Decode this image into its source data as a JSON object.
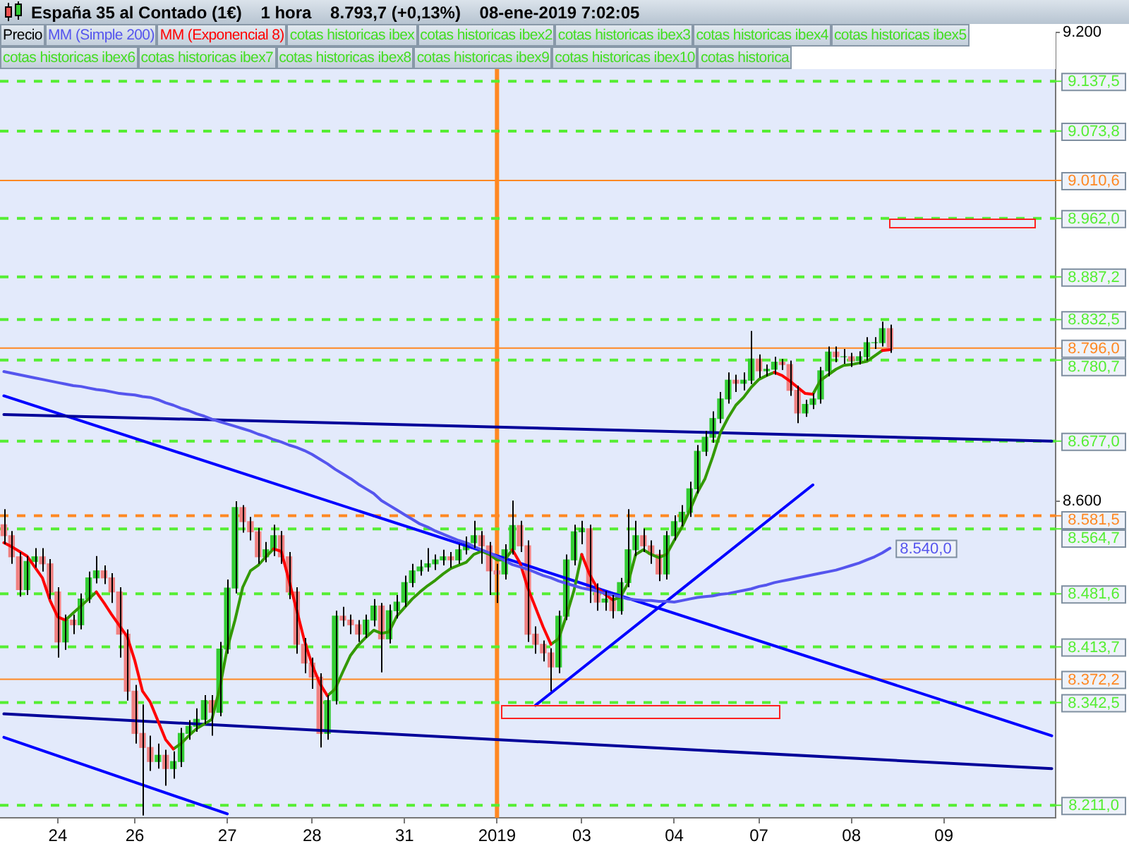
{
  "chart_data": {
    "type": "candlestick",
    "title": "España 35 al Contado (1€)    1 hora    8.793,7 (+0,13%)    08-ene-2019 7:02:05",
    "legend": "top left",
    "categories": [
      null,
      null,
      null,
      null,
      null,
      null,
      null,
      "24",
      null,
      null,
      null,
      null,
      null,
      null,
      null,
      null,
      null,
      "26",
      null,
      null,
      null,
      null,
      null,
      null,
      null,
      null,
      null,
      null,
      null,
      "27",
      null,
      null,
      null,
      null,
      null,
      null,
      null,
      null,
      null,
      null,
      "28",
      null,
      null,
      null,
      null,
      null,
      null,
      null,
      null,
      null,
      null,
      null,
      "31",
      null,
      null,
      null,
      null,
      null,
      null,
      null,
      null,
      null,
      null,
      null,
      "2019",
      null,
      null,
      null,
      null,
      null,
      null,
      null,
      null,
      null,
      null,
      "03",
      null,
      null,
      null,
      null,
      null,
      null,
      null,
      null,
      null,
      null,
      null,
      "04",
      null,
      null,
      null,
      null,
      null,
      null,
      null,
      null,
      null,
      null,
      "07",
      null,
      null,
      null,
      null,
      null,
      null,
      null,
      null,
      null,
      null,
      null,
      "08",
      null,
      null,
      null,
      null,
      null,
      null,
      null,
      null,
      null,
      null,
      null,
      "09",
      null,
      null,
      null,
      null,
      null,
      null,
      null,
      null,
      null,
      null,
      null,
      null,
      null,
      null
    ],
    "ylim": [
      8195,
      9200
    ],
    "yticks": [
      {
        "value": 9200,
        "label": "9.200"
      },
      {
        "value": 8600,
        "label": "8.600"
      }
    ],
    "series": [
      {
        "name": "Precio",
        "color": "#000000",
        "ohlc": [
          [
            8570,
            8590,
            8545,
            8556
          ],
          [
            8556,
            8562,
            8520,
            8529
          ],
          [
            8529,
            8535,
            8478,
            8487
          ],
          [
            8487,
            8530,
            8480,
            8523
          ],
          [
            8523,
            8540,
            8515,
            8529
          ],
          [
            8529,
            8540,
            8510,
            8520
          ],
          [
            8520,
            8526,
            8475,
            8484
          ],
          [
            8484,
            8490,
            8400,
            8420
          ],
          [
            8420,
            8455,
            8410,
            8448
          ],
          [
            8448,
            8455,
            8430,
            8442
          ],
          [
            8442,
            8482,
            8436,
            8475
          ],
          [
            8475,
            8510,
            8470,
            8502
          ],
          [
            8502,
            8530,
            8495,
            8511
          ],
          [
            8511,
            8518,
            8494,
            8502
          ],
          [
            8502,
            8508,
            8470,
            8484
          ],
          [
            8484,
            8490,
            8400,
            8430
          ],
          [
            8430,
            8436,
            8345,
            8357
          ],
          [
            8357,
            8365,
            8290,
            8303
          ],
          [
            8303,
            8340,
            8198,
            8285
          ],
          [
            8285,
            8300,
            8255,
            8267
          ],
          [
            8267,
            8290,
            8258,
            8275
          ],
          [
            8275,
            8282,
            8236,
            8258
          ],
          [
            8258,
            8280,
            8245,
            8267
          ],
          [
            8267,
            8310,
            8260,
            8303
          ],
          [
            8303,
            8320,
            8295,
            8312
          ],
          [
            8312,
            8335,
            8305,
            8321
          ],
          [
            8321,
            8352,
            8315,
            8345
          ],
          [
            8345,
            8352,
            8300,
            8330
          ],
          [
            8330,
            8420,
            8325,
            8411
          ],
          [
            8411,
            8500,
            8405,
            8489
          ],
          [
            8489,
            8600,
            8482,
            8592
          ],
          [
            8592,
            8595,
            8560,
            8574
          ],
          [
            8574,
            8580,
            8550,
            8561
          ],
          [
            8561,
            8566,
            8520,
            8529
          ],
          [
            8529,
            8548,
            8522,
            8538
          ],
          [
            8538,
            8570,
            8530,
            8556
          ],
          [
            8556,
            8562,
            8520,
            8529
          ],
          [
            8529,
            8535,
            8475,
            8484
          ],
          [
            8484,
            8490,
            8405,
            8417
          ],
          [
            8417,
            8425,
            8380,
            8393
          ],
          [
            8393,
            8400,
            8360,
            8375
          ],
          [
            8375,
            8380,
            8285,
            8303
          ],
          [
            8303,
            8352,
            8295,
            8345
          ],
          [
            8345,
            8460,
            8340,
            8453
          ],
          [
            8453,
            8465,
            8440,
            8448
          ],
          [
            8448,
            8455,
            8430,
            8442
          ],
          [
            8442,
            8448,
            8420,
            8430
          ],
          [
            8430,
            8455,
            8425,
            8448
          ],
          [
            8448,
            8475,
            8440,
            8466
          ],
          [
            8466,
            8470,
            8381,
            8424
          ],
          [
            8424,
            8468,
            8418,
            8460
          ],
          [
            8460,
            8480,
            8450,
            8471
          ],
          [
            8471,
            8505,
            8465,
            8496
          ],
          [
            8496,
            8520,
            8490,
            8511
          ],
          [
            8511,
            8525,
            8505,
            8516
          ],
          [
            8516,
            8540,
            8510,
            8520
          ],
          [
            8520,
            8532,
            8512,
            8525
          ],
          [
            8525,
            8538,
            8518,
            8529
          ],
          [
            8529,
            8535,
            8515,
            8525
          ],
          [
            8525,
            8545,
            8520,
            8538
          ],
          [
            8538,
            8555,
            8532,
            8547
          ],
          [
            8547,
            8575,
            8540,
            8556
          ],
          [
            8556,
            8562,
            8520,
            8543
          ],
          [
            8543,
            8548,
            8480,
            8511
          ],
          [
            8511,
            8520,
            8470,
            8507
          ],
          [
            8507,
            8545,
            8500,
            8538
          ],
          [
            8538,
            8601,
            8532,
            8569
          ],
          [
            8569,
            8575,
            8535,
            8543
          ],
          [
            8543,
            8550,
            8420,
            8430
          ],
          [
            8430,
            8440,
            8405,
            8417
          ],
          [
            8417,
            8422,
            8395,
            8406
          ],
          [
            8406,
            8412,
            8357,
            8388
          ],
          [
            8388,
            8460,
            8380,
            8453
          ],
          [
            8453,
            8532,
            8448,
            8525
          ],
          [
            8525,
            8570,
            8518,
            8561
          ],
          [
            8561,
            8575,
            8545,
            8565
          ],
          [
            8565,
            8570,
            8470,
            8489
          ],
          [
            8489,
            8495,
            8460,
            8471
          ],
          [
            8471,
            8485,
            8460,
            8475
          ],
          [
            8475,
            8480,
            8450,
            8460
          ],
          [
            8460,
            8502,
            8455,
            8496
          ],
          [
            8496,
            8590,
            8490,
            8538
          ],
          [
            8538,
            8575,
            8530,
            8556
          ],
          [
            8556,
            8565,
            8535,
            8543
          ],
          [
            8543,
            8550,
            8520,
            8532
          ],
          [
            8532,
            8538,
            8498,
            8507
          ],
          [
            8507,
            8562,
            8500,
            8556
          ],
          [
            8556,
            8582,
            8550,
            8574
          ],
          [
            8574,
            8595,
            8568,
            8586
          ],
          [
            8586,
            8625,
            8580,
            8616
          ],
          [
            8616,
            8672,
            8610,
            8664
          ],
          [
            8664,
            8690,
            8658,
            8682
          ],
          [
            8682,
            8715,
            8675,
            8706
          ],
          [
            8706,
            8740,
            8700,
            8731
          ],
          [
            8731,
            8765,
            8725,
            8755
          ],
          [
            8755,
            8762,
            8740,
            8751
          ],
          [
            8751,
            8765,
            8742,
            8755
          ],
          [
            8755,
            8818,
            8750,
            8782
          ],
          [
            8782,
            8788,
            8758,
            8767
          ],
          [
            8767,
            8775,
            8760,
            8769
          ],
          [
            8769,
            8785,
            8762,
            8778
          ],
          [
            8778,
            8782,
            8768,
            8775
          ],
          [
            8775,
            8780,
            8735,
            8742
          ],
          [
            8742,
            8748,
            8700,
            8713
          ],
          [
            8713,
            8730,
            8708,
            8724
          ],
          [
            8724,
            8738,
            8718,
            8731
          ],
          [
            8731,
            8772,
            8725,
            8767
          ],
          [
            8767,
            8798,
            8760,
            8791
          ],
          [
            8791,
            8798,
            8778,
            8785
          ],
          [
            8785,
            8795,
            8776,
            8785
          ],
          [
            8785,
            8790,
            8772,
            8780
          ],
          [
            8780,
            8792,
            8775,
            8785
          ],
          [
            8785,
            8810,
            8780,
            8803
          ],
          [
            8803,
            8810,
            8795,
            8803
          ],
          [
            8803,
            8830,
            8798,
            8821
          ],
          [
            8821,
            8826,
            8790,
            8794
          ],
          null,
          null,
          null,
          null,
          null,
          null,
          null,
          null,
          null,
          null,
          null,
          null,
          null,
          null,
          null,
          null,
          null,
          null,
          null,
          null,
          null
        ],
        "colors": [
          "#f08080",
          "#f08080",
          "#f08080",
          "#33cc33",
          "#33cc33",
          "#f08080",
          "#f08080",
          "#f08080",
          "#33cc33",
          "#f08080",
          "#33cc33",
          "#33cc33",
          "#33cc33",
          "#f08080",
          "#f08080",
          "#f08080",
          "#f08080",
          "#f08080",
          "#f08080",
          "#f08080",
          "#33cc33",
          "#f08080",
          "#33cc33",
          "#33cc33",
          "#33cc33",
          "#33cc33",
          "#33cc33",
          "#f08080",
          "#33cc33",
          "#33cc33",
          "#33cc33",
          "#f08080",
          "#f08080",
          "#f08080",
          "#33cc33",
          "#33cc33",
          "#f08080",
          "#f08080",
          "#f08080",
          "#f08080",
          "#f08080",
          "#f08080",
          "#33cc33",
          "#33cc33",
          "#f08080",
          "#f08080",
          "#f08080",
          "#33cc33",
          "#33cc33",
          "#f08080",
          "#33cc33",
          "#33cc33",
          "#33cc33",
          "#33cc33",
          "#33cc33",
          "#33cc33",
          "#33cc33",
          "#33cc33",
          "#f08080",
          "#33cc33",
          "#33cc33",
          "#33cc33",
          "#f08080",
          "#f08080",
          "#f08080",
          "#33cc33",
          "#33cc33",
          "#f08080",
          "#f08080",
          "#f08080",
          "#f08080",
          "#f08080",
          "#33cc33",
          "#33cc33",
          "#33cc33",
          "#33cc33",
          "#f08080",
          "#f08080",
          "#33cc33",
          "#f08080",
          "#33cc33",
          "#33cc33",
          "#33cc33",
          "#f08080",
          "#f08080",
          "#f08080",
          "#33cc33",
          "#33cc33",
          "#33cc33",
          "#33cc33",
          "#33cc33",
          "#33cc33",
          "#33cc33",
          "#33cc33",
          "#33cc33",
          "#f08080",
          "#33cc33",
          "#33cc33",
          "#f08080",
          "#33cc33",
          "#33cc33",
          "#f08080",
          "#f08080",
          "#f08080",
          "#33cc33",
          "#33cc33",
          "#33cc33",
          "#33cc33",
          "#f08080",
          "#33cc33",
          "#f08080",
          "#33cc33",
          "#33cc33",
          "#33cc33",
          "#33cc33",
          "#f08080",
          null,
          null,
          null,
          null,
          null,
          null,
          null,
          null,
          null,
          null,
          null,
          null,
          null,
          null,
          null,
          null,
          null,
          null,
          null,
          null,
          null
        ]
      },
      {
        "type": "line",
        "name": "MM (Simple 200)",
        "color": "#5555ee",
        "values": [
          8766,
          8764,
          8762,
          8760,
          8758,
          8756,
          8754,
          8752,
          8750,
          8748,
          8747,
          8745,
          8743,
          8742,
          8740,
          8738,
          8737,
          8736,
          8734,
          8733,
          8730,
          8726,
          8723,
          8719,
          8716,
          8712,
          8709,
          8705,
          8702,
          8699,
          8696,
          8693,
          8690,
          8686,
          8683,
          8679,
          8676,
          8672,
          8669,
          8665,
          8660,
          8654,
          8648,
          8641,
          8635,
          8629,
          8622,
          8616,
          8610,
          8601,
          8595,
          8589,
          8583,
          8577,
          8571,
          8567,
          8562,
          8558,
          8554,
          8550,
          8547,
          8542,
          8538,
          8534,
          8529,
          8524,
          8519,
          8516,
          8513,
          8509,
          8505,
          8502,
          8498,
          8495,
          8492,
          8489,
          8487,
          8485,
          8482,
          8480,
          8478,
          8475,
          8474,
          8473,
          8473,
          8472,
          8472,
          8471,
          8473,
          8475,
          8477,
          8478,
          8479,
          8481,
          8482,
          8484,
          8486,
          8488,
          8491,
          8493,
          8496,
          8498,
          8500,
          8502,
          8504,
          8506,
          8508,
          8510,
          8512,
          8515,
          8518,
          8521,
          8525,
          8529,
          8534,
          8540,
          null,
          null,
          null,
          null,
          null,
          null,
          null,
          null,
          null,
          null,
          null,
          null,
          null,
          null,
          null,
          null,
          null,
          null,
          null,
          null,
          null
        ],
        "value_labels": [
          null,
          null,
          null,
          null,
          null,
          null,
          null,
          null,
          null,
          null,
          null,
          null,
          null,
          null,
          null,
          null,
          null,
          null,
          null,
          null,
          null,
          null,
          null,
          null,
          null,
          null,
          null,
          null,
          null,
          null,
          null,
          null,
          null,
          null,
          null,
          null,
          null,
          null,
          null,
          null,
          null,
          null,
          null,
          null,
          null,
          null,
          null,
          null,
          null,
          null,
          null,
          null,
          null,
          null,
          null,
          null,
          null,
          null,
          null,
          null,
          null,
          null,
          null,
          null,
          null,
          null,
          null,
          null,
          null,
          null,
          null,
          null,
          null,
          null,
          null,
          null,
          null,
          null,
          null,
          null,
          null,
          null,
          null,
          null,
          null,
          null,
          null,
          null,
          null,
          null,
          null,
          null,
          null,
          null,
          null,
          null,
          null,
          null,
          null,
          null,
          null,
          null,
          null,
          null,
          null,
          null,
          null,
          null,
          null,
          null,
          null,
          null,
          null,
          null,
          null,
          "8.540,0",
          null,
          null,
          null,
          null,
          null,
          null,
          null,
          null,
          null,
          null,
          null,
          null,
          null,
          null,
          null,
          null,
          null,
          null,
          null,
          null,
          null
        ]
      },
      {
        "type": "line",
        "name": "MM (Exponencial 8)",
        "color": "#ff0000",
        "values": [
          8547,
          8542,
          8536,
          8530,
          8516,
          8502,
          8473,
          8452,
          8448,
          null,
          null,
          null,
          8484,
          8470,
          8455,
          8441,
          8427,
          8396,
          8357,
          8343,
          8319,
          8295,
          8283,
          null,
          null,
          null,
          null,
          null,
          null,
          null,
          null,
          null,
          null,
          null,
          null,
          8539,
          8536,
          8499,
          8461,
          8422,
          8391,
          8367,
          8351,
          null,
          null,
          null,
          null,
          null,
          null,
          null,
          null,
          null,
          null,
          null,
          null,
          null,
          null,
          null,
          null,
          null,
          null,
          null,
          null,
          null,
          null,
          null,
          8538,
          8521,
          8489,
          8464,
          8439,
          8417,
          null,
          null,
          null,
          8532,
          8507,
          8489,
          8481,
          8474,
          null,
          null,
          null,
          null,
          null,
          null,
          null,
          null,
          null,
          null,
          null,
          null,
          null,
          null,
          null,
          null,
          null,
          null,
          null,
          null,
          8765,
          8761,
          8754,
          8746,
          8738,
          8737,
          null,
          null,
          null,
          null,
          null,
          null,
          null,
          null,
          8793,
          8794,
          null,
          null,
          null,
          null,
          null,
          null,
          null,
          null,
          null,
          null,
          null,
          null,
          null,
          null,
          null,
          null,
          null,
          null,
          null,
          null,
          null
        ]
      },
      {
        "type": "line",
        "color": "#339900",
        "values": [
          null,
          null,
          null,
          null,
          null,
          null,
          null,
          null,
          8448,
          8457,
          8466,
          8475,
          8484,
          null,
          null,
          null,
          null,
          null,
          null,
          null,
          null,
          null,
          8283,
          8290,
          8300,
          8309,
          8315,
          8321,
          8360,
          8412,
          8448,
          8490,
          8511,
          8518,
          8529,
          8539,
          null,
          null,
          null,
          null,
          null,
          null,
          8351,
          8360,
          8382,
          8403,
          8416,
          8426,
          8435,
          8431,
          8433,
          8453,
          8464,
          8475,
          8484,
          8492,
          8499,
          8507,
          8514,
          8518,
          8522,
          8532,
          8536,
          8532,
          8525,
          8525,
          8538,
          null,
          null,
          null,
          null,
          8417,
          8424,
          8453,
          8486,
          8532,
          null,
          null,
          null,
          8474,
          8477,
          8495,
          8532,
          8538,
          8532,
          8528,
          8532,
          8550,
          8567,
          8588,
          8611,
          8629,
          8657,
          8688,
          8707,
          8723,
          8733,
          8746,
          8756,
          8761,
          8765,
          null,
          null,
          null,
          null,
          8737,
          8755,
          8762,
          8769,
          8774,
          8775,
          8777,
          8779,
          8786,
          8793,
          null,
          null,
          null,
          null,
          null,
          null,
          null,
          null,
          null,
          null,
          null,
          null,
          null,
          null,
          null,
          null,
          null,
          null,
          null,
          null,
          null,
          null
        ]
      },
      {
        "type": "line",
        "color": "#000099",
        "values": [
          8711,
          null,
          null,
          null,
          null,
          null,
          null,
          null,
          null,
          null,
          null,
          null,
          null,
          null,
          null,
          null,
          null,
          null,
          null,
          null,
          null,
          null,
          null,
          null,
          null,
          null,
          null,
          null,
          null,
          null,
          null,
          null,
          null,
          null,
          null,
          null,
          null,
          null,
          null,
          null,
          null,
          null,
          null,
          null,
          null,
          null,
          null,
          null,
          null,
          null,
          null,
          null,
          null,
          null,
          null,
          null,
          null,
          null,
          null,
          null,
          null,
          null,
          null,
          null,
          null,
          null,
          null,
          null,
          null,
          null,
          null,
          null,
          null,
          null,
          null,
          null,
          null,
          null,
          null,
          null,
          null,
          null,
          null,
          null,
          null,
          null,
          null,
          null,
          null,
          null,
          null,
          null,
          null,
          null,
          null,
          null,
          null,
          null,
          null,
          null,
          null,
          null,
          null,
          null,
          null,
          null,
          null,
          null,
          null,
          null,
          null,
          null,
          null,
          null,
          null,
          null,
          null,
          null,
          null,
          null,
          null,
          null,
          null,
          null,
          null,
          null,
          null,
          null,
          null,
          null,
          null,
          null,
          null,
          null,
          null,
          null,
          8677
        ]
      },
      {
        "type": "line",
        "color": "#0000ff",
        "values": [
          8735,
          null,
          null,
          null,
          null,
          null,
          null,
          null,
          null,
          null,
          null,
          null,
          null,
          null,
          null,
          null,
          null,
          null,
          null,
          null,
          null,
          null,
          null,
          null,
          null,
          null,
          null,
          null,
          null,
          null,
          null,
          null,
          null,
          null,
          null,
          null,
          null,
          null,
          null,
          null,
          null,
          null,
          null,
          null,
          null,
          null,
          null,
          null,
          null,
          null,
          null,
          null,
          null,
          null,
          null,
          null,
          null,
          null,
          null,
          null,
          null,
          null,
          null,
          null,
          null,
          null,
          null,
          null,
          null,
          null,
          null,
          null,
          null,
          null,
          null,
          null,
          null,
          null,
          null,
          null,
          null,
          null,
          null,
          null,
          null,
          null,
          null,
          null,
          null,
          null,
          null,
          null,
          null,
          null,
          null,
          null,
          null,
          null,
          null,
          null,
          null,
          null,
          null,
          null,
          null,
          null,
          null,
          null,
          null,
          null,
          null,
          null,
          null,
          null,
          null,
          null,
          null,
          null,
          null,
          null,
          null,
          null,
          null,
          null,
          null,
          null,
          null,
          null,
          null,
          null,
          null,
          null,
          null,
          null,
          null,
          null,
          8300
        ]
      },
      {
        "type": "line",
        "color": "#000099",
        "values": [
          8328,
          null,
          null,
          null,
          null,
          null,
          null,
          null,
          null,
          null,
          null,
          null,
          null,
          null,
          null,
          null,
          null,
          null,
          null,
          null,
          null,
          null,
          null,
          null,
          null,
          null,
          null,
          null,
          null,
          null,
          null,
          null,
          null,
          null,
          null,
          null,
          null,
          null,
          null,
          null,
          null,
          null,
          null,
          null,
          null,
          null,
          null,
          null,
          null,
          null,
          null,
          null,
          null,
          null,
          null,
          null,
          null,
          null,
          null,
          null,
          null,
          null,
          null,
          null,
          null,
          null,
          null,
          null,
          null,
          null,
          null,
          null,
          null,
          null,
          null,
          null,
          null,
          null,
          null,
          null,
          null,
          null,
          null,
          null,
          null,
          null,
          null,
          null,
          null,
          null,
          null,
          null,
          null,
          null,
          null,
          null,
          null,
          null,
          null,
          null,
          null,
          null,
          null,
          null,
          null,
          null,
          null,
          null,
          null,
          null,
          null,
          null,
          null,
          null,
          null,
          null,
          null,
          null,
          null,
          null,
          null,
          null,
          null,
          null,
          null,
          null,
          null,
          null,
          null,
          null,
          null,
          null,
          null,
          null,
          null,
          null,
          8258
        ]
      },
      {
        "type": "line",
        "color": "#0000ff",
        "values": [
          8298,
          null,
          null,
          null,
          null,
          null,
          null,
          null,
          null,
          null,
          null,
          null,
          null,
          null,
          null,
          null,
          null,
          null,
          null,
          null,
          null,
          null,
          null,
          null,
          null,
          null,
          null,
          null,
          null,
          8200,
          null,
          null,
          null,
          null,
          null,
          null,
          null,
          null,
          null,
          null,
          null,
          null,
          null,
          null,
          null,
          null,
          null,
          null,
          null,
          null,
          null,
          null,
          null,
          null,
          null,
          null,
          null,
          null,
          null,
          null,
          null,
          null,
          null,
          null,
          null,
          null,
          null,
          null,
          null,
          null,
          null,
          null,
          null,
          null,
          null,
          null,
          null,
          null,
          null,
          null,
          null,
          null,
          null,
          null,
          null,
          null,
          null,
          null,
          null,
          null,
          null,
          null,
          null,
          null,
          null,
          null,
          null,
          null,
          null,
          null,
          null,
          null,
          null,
          null,
          null,
          null,
          null,
          null,
          null,
          null,
          null,
          null,
          null,
          null,
          null,
          null,
          null,
          null,
          null,
          null,
          null,
          null,
          null,
          null,
          null,
          null,
          null,
          null,
          null,
          null,
          null,
          null,
          null,
          null,
          null,
          null,
          null
        ]
      },
      {
        "type": "line",
        "color": "#0000ff",
        "values": [
          null,
          null,
          null,
          null,
          null,
          null,
          null,
          null,
          null,
          null,
          null,
          null,
          null,
          null,
          null,
          null,
          null,
          null,
          null,
          null,
          null,
          null,
          null,
          null,
          null,
          null,
          null,
          null,
          null,
          null,
          null,
          null,
          null,
          null,
          null,
          null,
          null,
          null,
          null,
          null,
          null,
          null,
          null,
          null,
          null,
          null,
          null,
          null,
          null,
          null,
          null,
          null,
          null,
          null,
          null,
          null,
          null,
          null,
          null,
          null,
          null,
          null,
          null,
          null,
          null,
          null,
          null,
          null,
          null,
          8339,
          null,
          null,
          null,
          null,
          null,
          null,
          null,
          null,
          null,
          null,
          null,
          null,
          null,
          null,
          null,
          null,
          null,
          null,
          null,
          null,
          null,
          null,
          null,
          null,
          null,
          null,
          null,
          null,
          null,
          null,
          null,
          null,
          null,
          null,
          null,
          8621,
          null,
          null,
          null,
          null,
          null,
          null,
          null,
          null,
          null,
          null,
          null,
          null,
          null,
          null,
          null,
          null,
          null,
          null,
          null,
          null,
          null,
          null,
          null,
          null,
          null,
          null,
          null,
          null,
          null,
          null,
          null
        ]
      }
    ],
    "ref_lines": [
      {
        "axis": "x",
        "value": "2019",
        "color": "#ff8822"
      },
      {
        "axis": "y",
        "value": 9137.5,
        "label": "9.137,5",
        "color": "#55ee33",
        "line_style": "dashed"
      },
      {
        "axis": "y",
        "value": 9073.8,
        "label": "9.073,8",
        "color": "#55ee33",
        "line_style": "dashed"
      },
      {
        "axis": "y",
        "value": 9010.6,
        "label": "9.010,6",
        "color": "#ff8822",
        "line_style": "solid"
      },
      {
        "axis": "y",
        "value": 8962,
        "label": "8.962,0",
        "color": "#55ee33",
        "line_style": "dashed"
      },
      {
        "axis": "y",
        "value": 8887.2,
        "label": "8.887,2",
        "color": "#55ee33",
        "line_style": "dashed"
      },
      {
        "axis": "y",
        "value": 8832.5,
        "label": "8.832,5",
        "color": "#55ee33",
        "line_style": "dashed"
      },
      {
        "axis": "y",
        "value": 8796,
        "label": "8.796,0",
        "color": "#ff8822",
        "line_style": "solid"
      },
      {
        "axis": "y",
        "value": 8780.7,
        "label": "8.780,7",
        "color": "#55ee33",
        "line_style": "dashed"
      },
      {
        "axis": "y",
        "value": 8677,
        "label": "8.677,0",
        "color": "#55ee33",
        "line_style": "dashed"
      },
      {
        "axis": "y",
        "value": 8581.5,
        "label": "8.581,5",
        "color": "#ff8822",
        "line_style": "dashed"
      },
      {
        "axis": "y",
        "value": 8564.7,
        "label": "8.564,7",
        "color": "#55ee33",
        "line_style": "dashed"
      },
      {
        "axis": "y",
        "value": 8481.6,
        "label": "8.481,6",
        "color": "#55ee33",
        "line_style": "dashed"
      },
      {
        "axis": "y",
        "value": 8413.7,
        "label": "8.413,7",
        "color": "#55ee33",
        "line_style": "dashed"
      },
      {
        "axis": "y",
        "value": 8372.2,
        "label": "8.372,2",
        "color": "#ff8822",
        "line_style": "solid"
      },
      {
        "axis": "y",
        "value": 8342.5,
        "label": "8.342,5",
        "color": "#55ee33",
        "line_style": "dashed"
      },
      {
        "axis": "y",
        "value": 8211,
        "label": "8.211,0",
        "color": "#55ee33",
        "line_style": "dashed"
      }
    ],
    "annotations": [
      "cotas historicas ibex",
      "cotas historicas ibex2",
      "cotas historicas ibex3",
      "cotas historicas ibex4",
      "cotas historicas ibex5",
      "cotas historicas ibex6",
      "cotas historicas ibex7",
      "cotas historicas ibex8",
      "cotas historicas ibex9",
      "cotas historicas ibex10",
      "cotas historica"
    ]
  }
}
